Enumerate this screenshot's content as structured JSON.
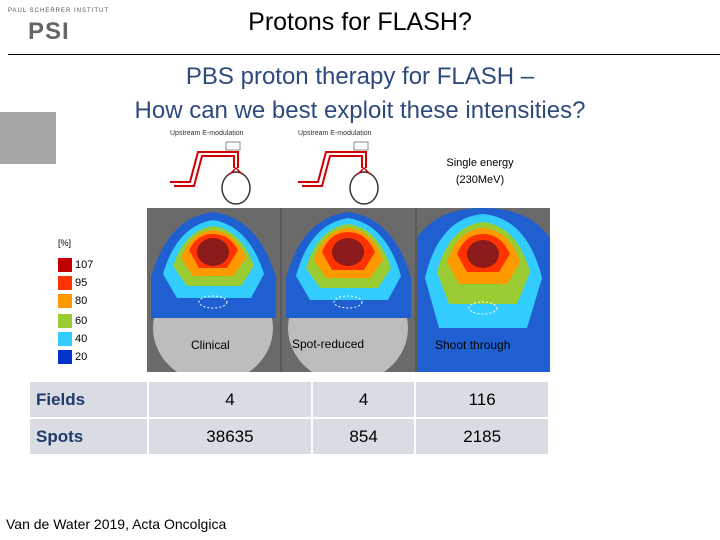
{
  "header": {
    "logo_small_text": "PAUL SCHERRER INSTITUT",
    "logo_text": "PSI",
    "title": "Protons for FLASH?"
  },
  "subtitle": {
    "line1": "PBS proton therapy for FLASH –",
    "line2": "How can we best exploit these intensities?"
  },
  "beam_diagrams": [
    {
      "label": "Upstream  E-modulation"
    },
    {
      "label": "Upstream  E-modulation"
    }
  ],
  "single_energy": {
    "line1": "Single energy",
    "line2": "(230MeV)"
  },
  "panels": [
    {
      "label": "Clinical"
    },
    {
      "label": "Spot-reduced"
    },
    {
      "label": "Shoot through"
    }
  ],
  "legend": {
    "title": "[%]",
    "items": [
      {
        "label": "107",
        "color": "#c00000"
      },
      {
        "label": "95",
        "color": "#ff3300"
      },
      {
        "label": "80",
        "color": "#ff9900"
      },
      {
        "label": "60",
        "color": "#99cc33"
      },
      {
        "label": "40",
        "color": "#33ccff"
      },
      {
        "label": "20",
        "color": "#0033cc"
      }
    ]
  },
  "table": {
    "rows": [
      {
        "label": "Fields",
        "values": [
          "4",
          "4",
          "116"
        ]
      },
      {
        "label": "Spots",
        "values": [
          "38635",
          "854",
          "2185"
        ]
      }
    ]
  },
  "citation": "Van de Water 2019, Acta Oncolgica",
  "colors": {
    "subtitle": "#2e4a7d",
    "table_cell": "#d9dce3",
    "table_header_text": "#1f3a6b",
    "gray_box": "#a6a6a6",
    "beam_red": "#d00000"
  }
}
